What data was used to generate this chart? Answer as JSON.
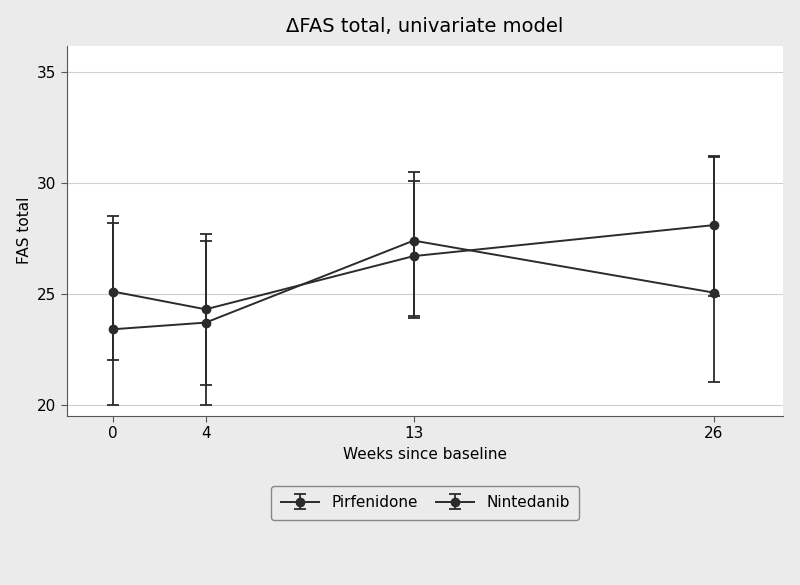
{
  "title": "ΔFAS total, univariate model",
  "xlabel": "Weeks since baseline",
  "ylabel": "FAS total",
  "x": [
    0,
    4,
    13,
    26
  ],
  "pirfenidone": {
    "label": "Pirfenidone",
    "y": [
      25.1,
      24.3,
      26.7,
      28.1
    ],
    "yerr_low": [
      3.1,
      3.4,
      2.8,
      3.2
    ],
    "yerr_high": [
      3.1,
      3.4,
      3.4,
      3.1
    ]
  },
  "nintedanib": {
    "label": "Nintedanib",
    "y": [
      23.4,
      23.7,
      27.4,
      25.05
    ],
    "yerr_low": [
      3.4,
      3.7,
      3.4,
      4.05
    ],
    "yerr_high": [
      5.1,
      3.7,
      3.1,
      6.1
    ]
  },
  "ylim": [
    19.5,
    36.2
  ],
  "yticks": [
    20,
    25,
    30,
    35
  ],
  "xticks": [
    0,
    4,
    13,
    26
  ],
  "line_color": "#2b2b2b",
  "marker": "o",
  "markersize": 6,
  "linewidth": 1.4,
  "capsize": 4,
  "grid_color": "#d0d0d0",
  "background_color": "#ebebeb",
  "plot_bg_color": "#ffffff",
  "legend_ncol": 2,
  "title_fontsize": 14,
  "label_fontsize": 11,
  "tick_fontsize": 11,
  "legend_fontsize": 11
}
